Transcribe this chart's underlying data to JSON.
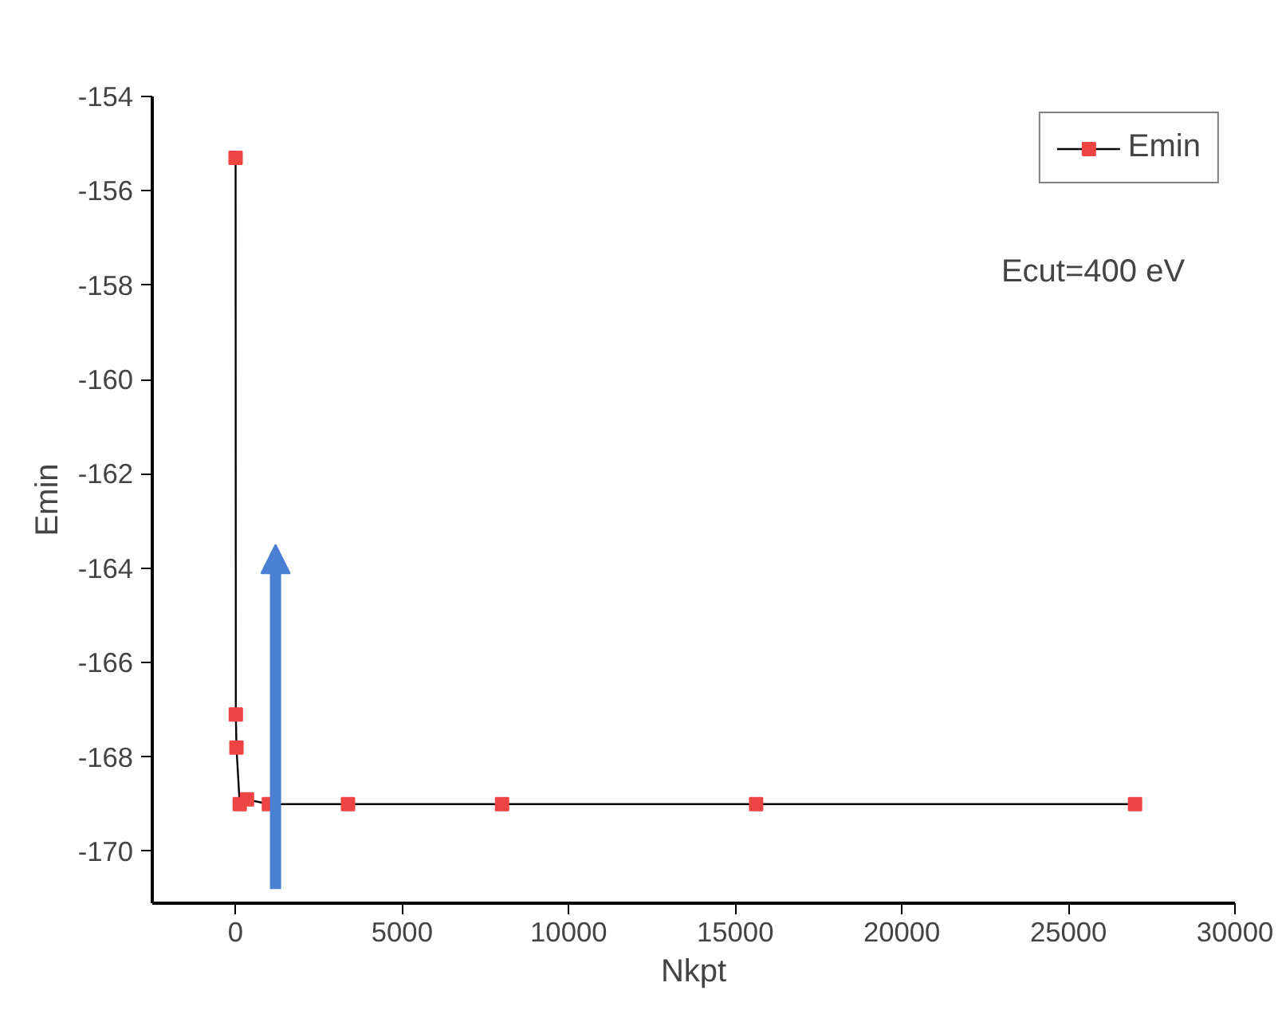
{
  "chart_data": {
    "type": "line",
    "xlabel": "Nkpt",
    "ylabel": "Emin",
    "x": [
      1,
      8,
      27,
      125,
      343,
      1000,
      3375,
      8000,
      15625,
      27000
    ],
    "series": [
      {
        "name": "Emin",
        "color": "#ee4444",
        "values": [
          -155.3,
          -167.1,
          -167.8,
          -169.0,
          -168.9,
          -169.0,
          -169.0,
          -169.0,
          -169.0,
          -169.0
        ]
      }
    ],
    "xlim": [
      -2500,
      30000
    ],
    "xticks": [
      0,
      5000,
      10000,
      15000,
      20000,
      25000,
      30000
    ],
    "ylim": [
      -171.1,
      -154
    ],
    "yticks": [
      -170,
      -168,
      -166,
      -164,
      -162,
      -160,
      -158,
      -156,
      -154
    ],
    "annotations": [
      "Ecut=400 eV"
    ],
    "marker": "square",
    "line_style": "solid",
    "legend": "top right",
    "grid": false
  }
}
